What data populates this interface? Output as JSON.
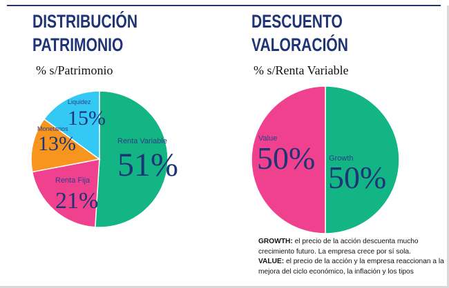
{
  "chart_data": [
    {
      "type": "pie",
      "title": [
        "DISTRIBUCIÓN",
        "PATRIMONIO"
      ],
      "subtitle": "% s/Patrimonio",
      "slices": [
        {
          "name": "Renta Variable",
          "value": 51,
          "label": "51%",
          "color": "#13b585"
        },
        {
          "name": "Renta Fija",
          "value": 21,
          "label": "21%",
          "color": "#f0418e"
        },
        {
          "name": "Monetarios",
          "value": 13,
          "label": "13%",
          "color": "#f7951f"
        },
        {
          "name": "Liquidez",
          "value": 15,
          "label": "15%",
          "color": "#33c9f4"
        }
      ]
    },
    {
      "type": "pie",
      "title": [
        "DESCUENTO",
        "VALORACIÓN"
      ],
      "subtitle": "% s/Renta Variable",
      "slices": [
        {
          "name": "Growth",
          "value": 50,
          "label": "50%",
          "color": "#13b585"
        },
        {
          "name": "Value",
          "value": 50,
          "label": "50%",
          "color": "#f0418e"
        }
      ]
    }
  ],
  "note": {
    "growth_label": "GROWTH:",
    "growth_text": " el precio de la acción descuenta mucho crecimiento futuro. La empresa crece por sí sola.",
    "value_label": "VALUE:",
    "value_text": " el precio de la acción y la empresa reaccionan a la mejora del ciclo económico, la inflación y los tipos"
  },
  "colors": {
    "title": "#1f3377",
    "slice_stroke": "#ffffff"
  }
}
